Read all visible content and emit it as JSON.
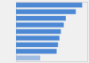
{
  "chart_data": {
    "type": "bar",
    "orientation": "horizontal",
    "categories": [
      null,
      null,
      null,
      null,
      null,
      null,
      null,
      null,
      null
    ],
    "values": [
      93,
      84,
      70,
      67,
      63,
      61,
      59,
      57,
      34
    ],
    "colors": [
      "#4d88d4",
      "#4d88d4",
      "#4d88d4",
      "#4d88d4",
      "#4d88d4",
      "#4d88d4",
      "#4d88d4",
      "#4d88d4",
      "#a0bce0"
    ],
    "xlim": [
      0,
      100
    ],
    "tick_labels": false
  }
}
